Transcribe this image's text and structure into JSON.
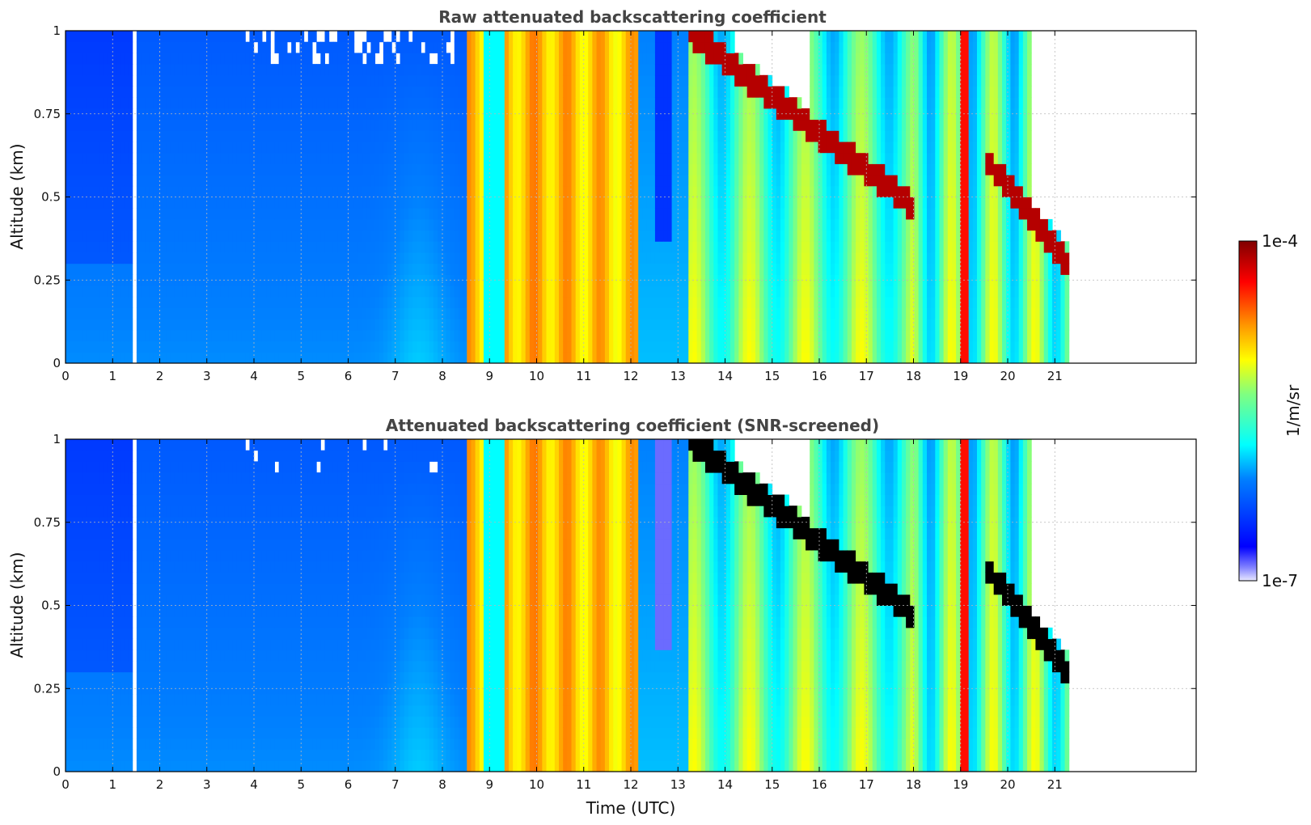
{
  "chart_data": [
    {
      "type": "heatmap",
      "title": "Raw attenuated backscattering coefficient",
      "xlabel": "",
      "ylabel": "Altitude (km)",
      "xlim": [
        0,
        24
      ],
      "ylim": [
        0,
        1
      ],
      "xticks": [
        "0",
        "1",
        "2",
        "3",
        "4",
        "5",
        "6",
        "7",
        "8",
        "9",
        "10",
        "11",
        "12",
        "13",
        "14",
        "15",
        "16",
        "17",
        "18",
        "19",
        "20",
        "21"
      ],
      "yticks": [
        "0",
        "0.25",
        "0.5",
        "0.75",
        "1"
      ],
      "grid": true,
      "data_end_hour": 21.3,
      "gap_hours": [
        1.45,
        1.55
      ],
      "screened": false
    },
    {
      "type": "heatmap",
      "title": "Attenuated backscattering coefficient (SNR-screened)",
      "xlabel": "Time (UTC)",
      "ylabel": "Altitude (km)",
      "xlim": [
        0,
        24
      ],
      "ylim": [
        0,
        1
      ],
      "xticks": [
        "0",
        "1",
        "2",
        "3",
        "4",
        "5",
        "6",
        "7",
        "8",
        "9",
        "10",
        "11",
        "12",
        "13",
        "14",
        "15",
        "16",
        "17",
        "18",
        "19",
        "20",
        "21"
      ],
      "yticks": [
        "0",
        "0.25",
        "0.5",
        "0.75",
        "1"
      ],
      "grid": true,
      "data_end_hour": 21.3,
      "gap_hours": [
        1.45,
        1.55
      ],
      "screened": true
    }
  ],
  "colorbar": {
    "label": "1/m/sr",
    "min_label": "1e-7",
    "max_label": "1e-4",
    "scale": "log",
    "colormap": "jet"
  }
}
